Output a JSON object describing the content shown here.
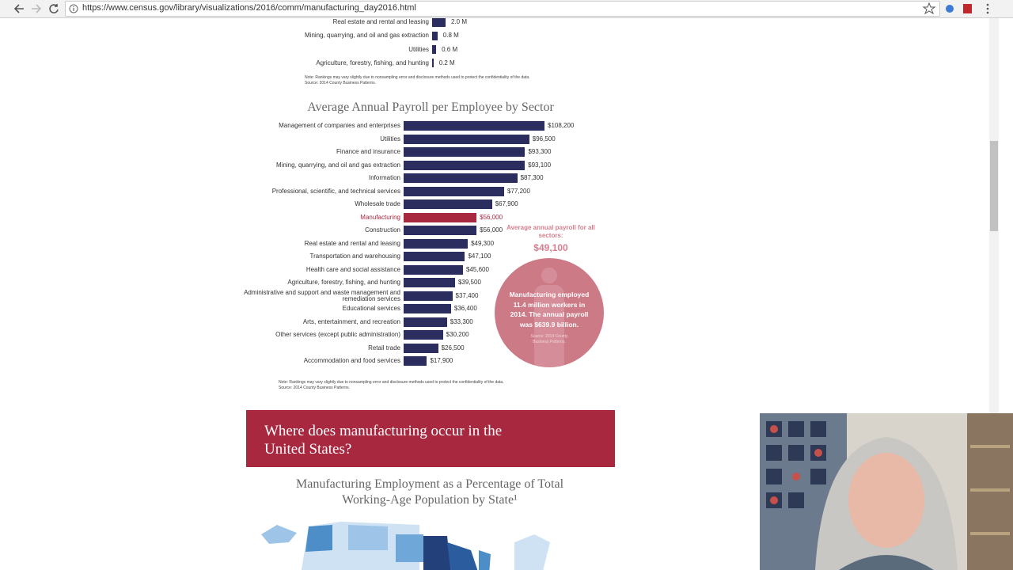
{
  "browser": {
    "url": "https://www.census.gov/library/visualizations/2016/comm/manufacturing_day2016.html"
  },
  "chart_data": [
    {
      "type": "bar",
      "categories": [
        "Real estate and rental and leasing",
        "Mining, quarrying, and oil and gas extraction",
        "Utilities",
        "Agriculture, forestry, fishing, and hunting"
      ],
      "values": [
        2.0,
        0.8,
        0.6,
        0.2
      ],
      "value_labels": [
        "2.0 M",
        "0.8 M",
        "0.6 M",
        "0.2 M"
      ],
      "color": "#2b2d5e",
      "note": "Note: Rankings may vary slightly due to nonsampling error and disclosure methods used to protect the confidentiality of the data.",
      "source": "Source: 2014 County Business Patterns."
    },
    {
      "type": "bar",
      "title": "Average Annual Payroll per Employee by Sector",
      "categories": [
        "Management of companies and enterprises",
        "Utilities",
        "Finance and insurance",
        "Mining, quarrying, and oil and gas extraction",
        "Information",
        "Professional, scientific, and technical services",
        "Wholesale trade",
        "Manufacturing",
        "Construction",
        "Real estate and rental and leasing",
        "Transportation and warehousing",
        "Health care and social assistance",
        "Agriculture, forestry, fishing, and hunting",
        "Administrative and support and waste management and remediation services",
        "Educational services",
        "Arts, entertainment, and recreation",
        "Other services (except public administration)",
        "Retail trade",
        "Accommodation and food services"
      ],
      "values": [
        108200,
        96500,
        93300,
        93100,
        87300,
        77200,
        67900,
        56000,
        56000,
        49300,
        47100,
        45600,
        39500,
        37400,
        36400,
        33300,
        30200,
        26500,
        17900
      ],
      "value_labels": [
        "$108,200",
        "$96,500",
        "$93,300",
        "$93,100",
        "$87,300",
        "$77,200",
        "$67,900",
        "$56,000",
        "$56,000",
        "$49,300",
        "$47,100",
        "$45,600",
        "$39,500",
        "$37,400",
        "$36,400",
        "$33,300",
        "$30,200",
        "$26,500",
        "$17,900"
      ],
      "color": "#2b2d5e",
      "colors": [
        "#2b2d5e",
        "#2b2d5e",
        "#2b2d5e",
        "#2b2d5e",
        "#2b2d5e",
        "#2b2d5e",
        "#2b2d5e",
        "#a8283f",
        "#2b2d5e",
        "#2b2d5e",
        "#2b2d5e",
        "#2b2d5e",
        "#2b2d5e",
        "#2b2d5e",
        "#2b2d5e",
        "#2b2d5e",
        "#2b2d5e",
        "#2b2d5e",
        "#2b2d5e"
      ],
      "note": "Note: Rankings may vary slightly due to nonsampling error and disclosure methods used to protect the confidentiality of the data.",
      "source": "Source: 2014 County Business Patterns.",
      "callout": {
        "heading": "Average annual payroll for all sectors:",
        "value": "$49,100",
        "text": "Manufacturing employed 11.4 million workers in 2014. The annual payroll was $639.9 billion.",
        "source": "Source: 2014 County Business Patterns."
      }
    }
  ],
  "section": {
    "heading": "Where does manufacturing occur in the United States?",
    "map_title": "Manufacturing Employment as a Percentage of Total Working-Age Population by State¹"
  }
}
